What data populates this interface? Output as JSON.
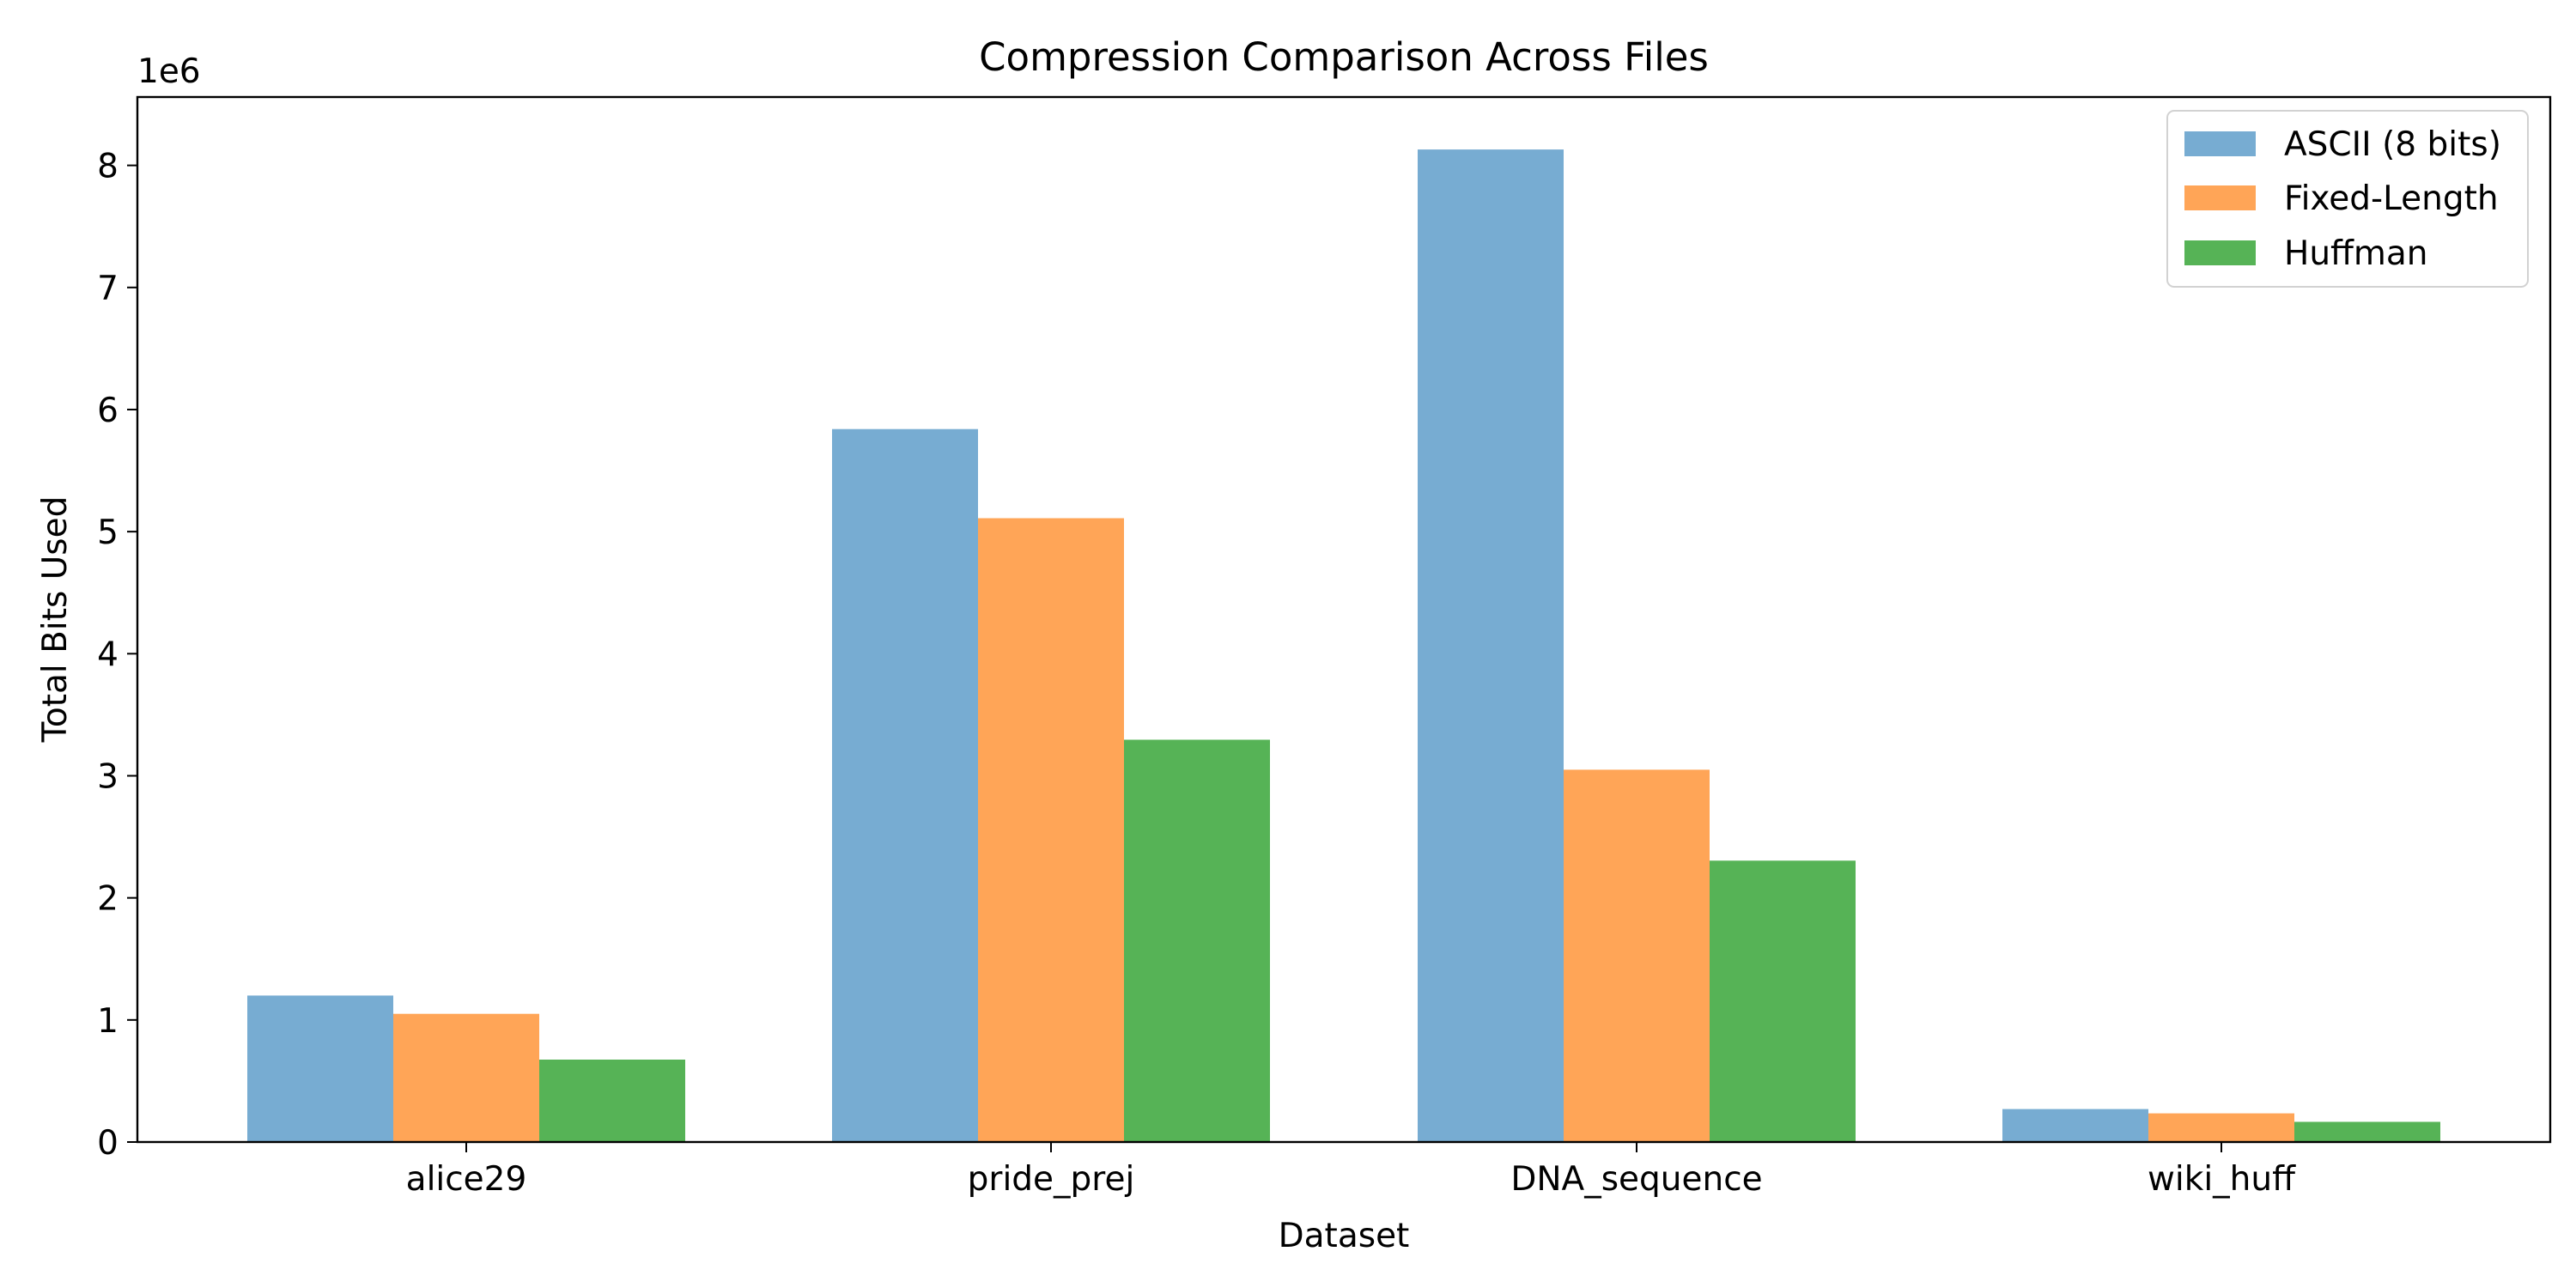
{
  "chart_data": {
    "type": "bar",
    "title": "Compression Comparison Across Files",
    "xlabel": "Dataset",
    "ylabel": "Total Bits Used",
    "y_scale_label": "1e6",
    "categories": [
      "alice29",
      "pride_prej",
      "DNA_sequence",
      "wiki_huff"
    ],
    "series": [
      {
        "name": "ASCII (8 bits)",
        "color": "#77acd2",
        "values": [
          1200000,
          5840000,
          8130000,
          270000
        ]
      },
      {
        "name": "Fixed-Length",
        "color": "#ffa557",
        "values": [
          1050000,
          5110000,
          3050000,
          235000
        ]
      },
      {
        "name": "Huffman",
        "color": "#56b356",
        "values": [
          675000,
          3295000,
          2305000,
          165000
        ]
      }
    ],
    "ylim": [
      0,
      8560000
    ],
    "yticks": [
      0,
      1,
      2,
      3,
      4,
      5,
      6,
      7,
      8
    ],
    "grid": false,
    "legend_position": "top-right"
  }
}
